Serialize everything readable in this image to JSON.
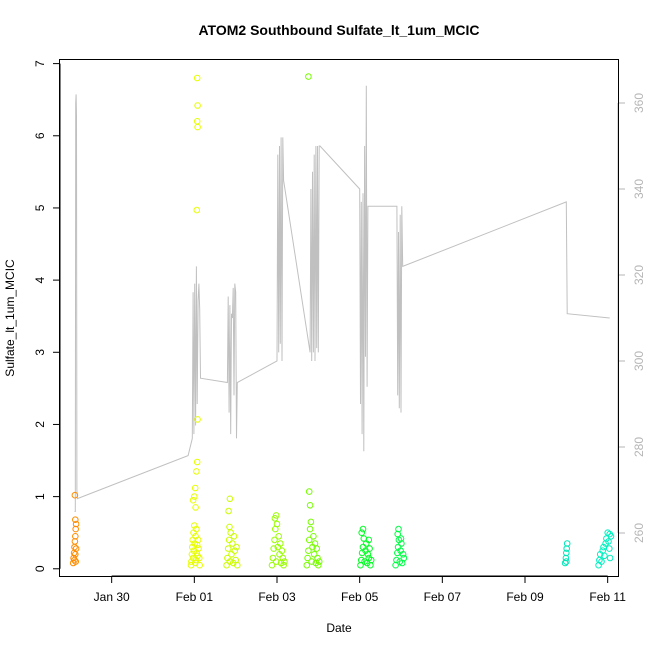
{
  "chart_data": {
    "type": "scatter",
    "title": "ATOM2 Southbound Sulfate_lt_1um_MCIC",
    "xlabel": "Date",
    "ylabel": "Sulfate_lt_1um_MCIC",
    "x_units": "days since Jan 30",
    "xlim": [
      -1.25,
      12.25
    ],
    "ylim": [
      -0.1,
      7.05
    ],
    "y2lim": [
      250.0,
      370.0
    ],
    "x_ticks": [
      {
        "value": 0,
        "label": "Jan 30"
      },
      {
        "value": 2,
        "label": "Feb 01"
      },
      {
        "value": 4,
        "label": "Feb 03"
      },
      {
        "value": 6,
        "label": "Feb 05"
      },
      {
        "value": 8,
        "label": "Feb 07"
      },
      {
        "value": 10,
        "label": "Feb 09"
      },
      {
        "value": 12,
        "label": "Feb 11"
      }
    ],
    "y_ticks": [
      0,
      1,
      2,
      3,
      4,
      5,
      6,
      7
    ],
    "y2_ticks": [
      260,
      280,
      300,
      320,
      340,
      360
    ],
    "secondary_line_color": "#c0c0c0",
    "secondary_tick_color": "#b5b5b5",
    "grid": false,
    "clusters": [
      {
        "start": -0.95,
        "end": -0.85,
        "color": "#ff8c00",
        "points": [
          [
            -0.93,
            0.08
          ],
          [
            -0.92,
            0.15
          ],
          [
            -0.91,
            0.22
          ],
          [
            -0.9,
            0.3
          ],
          [
            -0.9,
            0.12
          ],
          [
            -0.89,
            0.38
          ],
          [
            -0.88,
            0.45
          ],
          [
            -0.88,
            0.2
          ],
          [
            -0.87,
            0.55
          ],
          [
            -0.87,
            0.1
          ],
          [
            -0.86,
            0.62
          ],
          [
            -0.86,
            0.28
          ],
          [
            -0.88,
            0.68
          ],
          [
            -0.89,
            1.02
          ]
        ]
      },
      {
        "start": 1.9,
        "end": 2.15,
        "color": "#e6ff00",
        "points": [
          [
            1.92,
            0.05
          ],
          [
            1.93,
            0.1
          ],
          [
            1.94,
            0.2
          ],
          [
            1.95,
            0.3
          ],
          [
            1.96,
            0.4
          ],
          [
            1.97,
            0.15
          ],
          [
            1.98,
            0.5
          ],
          [
            1.99,
            0.25
          ],
          [
            2.0,
            0.6
          ],
          [
            2.01,
            0.35
          ],
          [
            2.02,
            0.08
          ],
          [
            2.03,
            0.45
          ],
          [
            2.04,
            0.12
          ],
          [
            2.05,
            0.55
          ],
          [
            2.06,
            0.22
          ],
          [
            2.07,
            0.33
          ],
          [
            2.08,
            0.18
          ],
          [
            2.09,
            0.4
          ],
          [
            2.1,
            0.28
          ],
          [
            2.12,
            0.15
          ],
          [
            2.13,
            0.05
          ],
          [
            1.97,
            0.95
          ],
          [
            2.0,
            1.0
          ],
          [
            2.02,
            1.12
          ],
          [
            2.05,
            1.35
          ],
          [
            2.07,
            1.48
          ],
          [
            2.03,
            0.85
          ],
          [
            2.08,
            2.07
          ],
          [
            2.06,
            4.97
          ],
          [
            2.08,
            6.12
          ],
          [
            2.07,
            6.2
          ],
          [
            2.08,
            6.42
          ],
          [
            2.07,
            6.8
          ]
        ]
      },
      {
        "start": 2.75,
        "end": 3.05,
        "color": "#ccff00",
        "points": [
          [
            2.78,
            0.05
          ],
          [
            2.8,
            0.15
          ],
          [
            2.82,
            0.28
          ],
          [
            2.84,
            0.4
          ],
          [
            2.86,
            0.1
          ],
          [
            2.88,
            0.5
          ],
          [
            2.9,
            0.2
          ],
          [
            2.92,
            0.35
          ],
          [
            2.94,
            0.08
          ],
          [
            2.96,
            0.45
          ],
          [
            2.98,
            0.25
          ],
          [
            3.0,
            0.12
          ],
          [
            3.02,
            0.3
          ],
          [
            3.04,
            0.05
          ],
          [
            2.85,
            0.58
          ],
          [
            2.83,
            0.8
          ],
          [
            2.86,
            0.97
          ]
        ]
      },
      {
        "start": 3.85,
        "end": 4.2,
        "color": "#99ff00",
        "points": [
          [
            3.88,
            0.05
          ],
          [
            3.9,
            0.15
          ],
          [
            3.92,
            0.28
          ],
          [
            3.94,
            0.4
          ],
          [
            3.96,
            0.55
          ],
          [
            3.98,
            0.1
          ],
          [
            4.0,
            0.62
          ],
          [
            4.02,
            0.3
          ],
          [
            4.04,
            0.45
          ],
          [
            4.06,
            0.2
          ],
          [
            4.08,
            0.35
          ],
          [
            4.1,
            0.08
          ],
          [
            4.12,
            0.25
          ],
          [
            4.14,
            0.15
          ],
          [
            4.16,
            0.05
          ],
          [
            4.18,
            0.1
          ],
          [
            3.95,
            0.7
          ],
          [
            3.98,
            0.74
          ]
        ]
      },
      {
        "start": 4.7,
        "end": 5.05,
        "color": "#77ff00",
        "points": [
          [
            4.72,
            0.05
          ],
          [
            4.74,
            0.15
          ],
          [
            4.76,
            0.25
          ],
          [
            4.78,
            0.4
          ],
          [
            4.8,
            0.55
          ],
          [
            4.82,
            0.65
          ],
          [
            4.84,
            0.1
          ],
          [
            4.86,
            0.3
          ],
          [
            4.88,
            0.45
          ],
          [
            4.9,
            0.2
          ],
          [
            4.92,
            0.35
          ],
          [
            4.94,
            0.08
          ],
          [
            4.96,
            0.28
          ],
          [
            4.98,
            0.15
          ],
          [
            5.0,
            0.05
          ],
          [
            5.02,
            0.1
          ],
          [
            4.8,
            0.88
          ],
          [
            4.78,
            1.07
          ],
          [
            4.76,
            6.82
          ]
        ]
      },
      {
        "start": 6.0,
        "end": 6.3,
        "color": "#00ff22",
        "points": [
          [
            6.02,
            0.05
          ],
          [
            6.04,
            0.12
          ],
          [
            6.06,
            0.22
          ],
          [
            6.08,
            0.3
          ],
          [
            6.1,
            0.42
          ],
          [
            6.12,
            0.1
          ],
          [
            6.14,
            0.25
          ],
          [
            6.16,
            0.35
          ],
          [
            6.18,
            0.08
          ],
          [
            6.2,
            0.2
          ],
          [
            6.22,
            0.15
          ],
          [
            6.24,
            0.28
          ],
          [
            6.26,
            0.05
          ],
          [
            6.28,
            0.12
          ],
          [
            6.05,
            0.5
          ],
          [
            6.08,
            0.55
          ],
          [
            6.22,
            0.4
          ]
        ]
      },
      {
        "start": 6.85,
        "end": 7.1,
        "color": "#00ff44",
        "points": [
          [
            6.87,
            0.05
          ],
          [
            6.89,
            0.12
          ],
          [
            6.91,
            0.22
          ],
          [
            6.93,
            0.3
          ],
          [
            6.95,
            0.4
          ],
          [
            6.97,
            0.1
          ],
          [
            6.99,
            0.25
          ],
          [
            7.01,
            0.35
          ],
          [
            7.03,
            0.08
          ],
          [
            7.05,
            0.2
          ],
          [
            7.07,
            0.15
          ],
          [
            6.92,
            0.48
          ],
          [
            6.94,
            0.55
          ],
          [
            7.0,
            0.42
          ]
        ]
      },
      {
        "start": 10.95,
        "end": 11.05,
        "color": "#00e6b8",
        "points": [
          [
            10.97,
            0.08
          ],
          [
            10.99,
            0.15
          ],
          [
            11.0,
            0.22
          ],
          [
            11.01,
            0.28
          ],
          [
            11.02,
            0.35
          ],
          [
            11.0,
            0.1
          ]
        ]
      },
      {
        "start": 11.75,
        "end": 12.1,
        "color": "#00f0c0",
        "points": [
          [
            11.78,
            0.05
          ],
          [
            11.8,
            0.12
          ],
          [
            11.82,
            0.2
          ],
          [
            11.85,
            0.1
          ],
          [
            11.88,
            0.25
          ],
          [
            11.9,
            0.3
          ],
          [
            11.92,
            0.18
          ],
          [
            11.95,
            0.35
          ],
          [
            11.97,
            0.42
          ],
          [
            12.0,
            0.5
          ],
          [
            12.02,
            0.38
          ],
          [
            12.04,
            0.28
          ],
          [
            12.06,
            0.15
          ],
          [
            12.08,
            0.45
          ],
          [
            12.05,
            0.48
          ]
        ]
      }
    ],
    "secondary_series": {
      "name": "",
      "points": [
        [
          -0.9,
          265
        ],
        [
          -0.88,
          265
        ],
        [
          -0.87,
          360
        ],
        [
          -0.86,
          362
        ],
        [
          -0.85,
          357
        ],
        [
          -0.84,
          270
        ],
        [
          -0.83,
          268
        ],
        [
          1.85,
          278
        ],
        [
          1.95,
          282
        ],
        [
          1.97,
          316
        ],
        [
          1.99,
          283
        ],
        [
          2.01,
          318
        ],
        [
          2.03,
          285
        ],
        [
          2.05,
          322
        ],
        [
          2.07,
          290
        ],
        [
          2.09,
          314
        ],
        [
          2.11,
          318
        ],
        [
          2.13,
          312
        ],
        [
          2.15,
          296
        ],
        [
          2.8,
          295
        ],
        [
          2.82,
          315
        ],
        [
          2.84,
          288
        ],
        [
          2.86,
          313
        ],
        [
          2.88,
          283
        ],
        [
          2.9,
          311
        ],
        [
          2.92,
          310
        ],
        [
          2.94,
          317
        ],
        [
          2.96,
          292
        ],
        [
          2.98,
          318
        ],
        [
          3.0,
          316
        ],
        [
          3.02,
          282
        ],
        [
          3.04,
          295
        ],
        [
          4.0,
          300
        ],
        [
          4.02,
          348
        ],
        [
          4.04,
          302
        ],
        [
          4.06,
          350
        ],
        [
          4.08,
          304
        ],
        [
          4.1,
          352
        ],
        [
          4.12,
          300
        ],
        [
          4.14,
          352
        ],
        [
          4.16,
          342
        ],
        [
          4.8,
          302
        ],
        [
          4.82,
          340
        ],
        [
          4.84,
          300
        ],
        [
          4.86,
          344
        ],
        [
          4.88,
          302
        ],
        [
          4.9,
          348
        ],
        [
          4.92,
          300
        ],
        [
          4.94,
          350
        ],
        [
          4.96,
          303
        ],
        [
          4.98,
          350
        ],
        [
          5.0,
          302
        ],
        [
          5.02,
          350
        ],
        [
          5.04,
          350
        ],
        [
          6.0,
          340
        ],
        [
          6.02,
          290
        ],
        [
          6.04,
          337
        ],
        [
          6.06,
          283
        ],
        [
          6.08,
          339
        ],
        [
          6.1,
          279
        ],
        [
          6.12,
          350
        ],
        [
          6.14,
          301
        ],
        [
          6.16,
          364
        ],
        [
          6.18,
          294
        ],
        [
          6.2,
          336
        ],
        [
          6.22,
          336
        ],
        [
          6.9,
          336
        ],
        [
          6.92,
          292
        ],
        [
          6.94,
          330
        ],
        [
          6.96,
          289
        ],
        [
          6.98,
          334
        ],
        [
          7.0,
          288
        ],
        [
          7.02,
          336
        ],
        [
          7.04,
          322
        ],
        [
          11.0,
          337
        ],
        [
          11.02,
          311
        ],
        [
          12.05,
          310
        ]
      ]
    }
  }
}
